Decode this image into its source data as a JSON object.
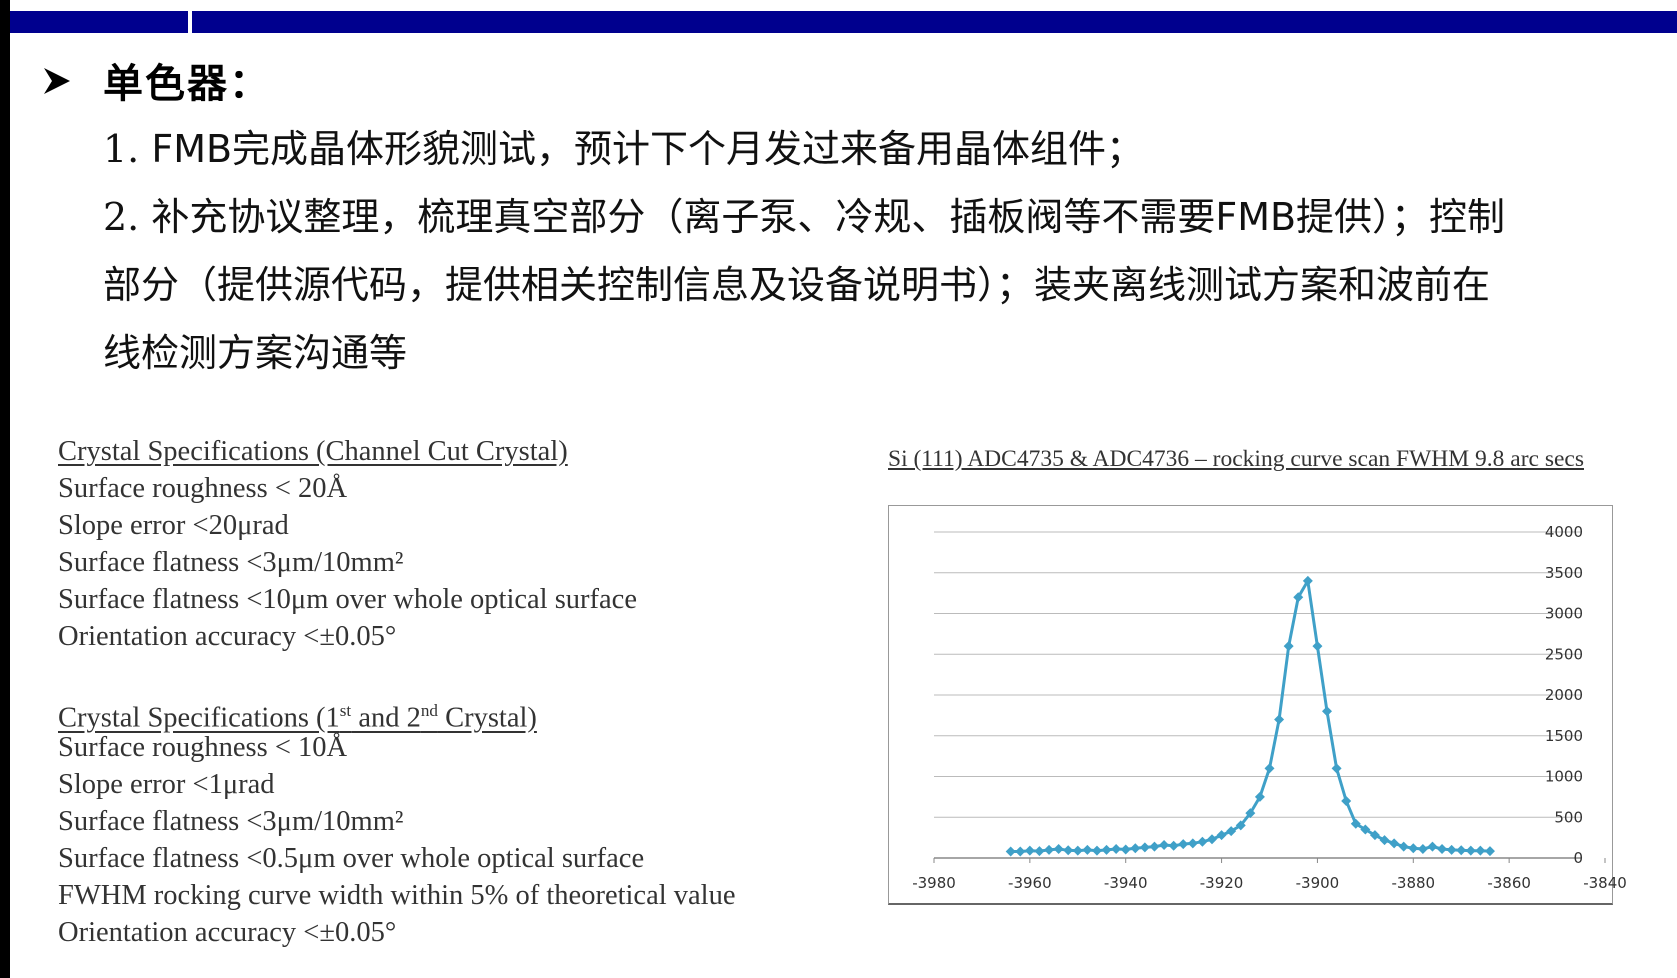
{
  "slide": {
    "heading": "单色器：",
    "items": [
      {
        "num": "1.",
        "text": " FMB完成晶体形貌测试，预计下个月发过来备用晶体组件；"
      },
      {
        "num": "2.",
        "text": " 补充协议整理，梳理真空部分（离子泵、冷规、插板阀等不需要FMB提供）；控制"
      },
      {
        "num": "",
        "text": "部分（提供源代码，提供相关控制信息及设备说明书）；装夹离线测试方案和波前在"
      },
      {
        "num": "",
        "text": "线检测方案沟通等"
      }
    ],
    "colors": {
      "top_bar": "#00008e",
      "curve": "#3fa0c8"
    }
  },
  "specs": {
    "group1": {
      "title": "Crystal Specifications (Channel Cut Crystal)",
      "lines": [
        "Surface roughness < 20Å",
        "Slope error <20μrad",
        "Surface flatness  <3μm/10mm²",
        "Surface flatness  <10μm over whole optical surface",
        "Orientation accuracy <±0.05°"
      ]
    },
    "group2": {
      "title_pre": "Crystal Specifications (1",
      "title_sup1": "st",
      "title_mid": " and 2",
      "title_sup2": "nd",
      "title_post": " Crystal)",
      "lines": [
        "Surface roughness < 10Å",
        "Slope error <1μrad",
        "Surface flatness  <3μm/10mm²",
        "Surface flatness  <0.5μm over whole optical surface",
        "FWHM rocking curve width within 5% of theoretical value",
        "Orientation accuracy <±0.05°"
      ]
    }
  },
  "chart_data": {
    "type": "line",
    "title": "Si (111) ADC4735 & ADC4736 – rocking curve scan FWHM 9.8 arc secs",
    "xlabel": "",
    "ylabel": "",
    "xlim": [
      -3980,
      -3840
    ],
    "ylim": [
      0,
      4000
    ],
    "x_ticks": [
      -3980,
      -3960,
      -3940,
      -3920,
      -3900,
      -3880,
      -3860,
      -3840
    ],
    "y_ticks": [
      0,
      500,
      1000,
      1500,
      2000,
      2500,
      3000,
      3500,
      4000
    ],
    "grid": true,
    "legend": "none",
    "series": [
      {
        "x": [
          -3964,
          -3962,
          -3960,
          -3958,
          -3956,
          -3954,
          -3952,
          -3950,
          -3948,
          -3946,
          -3944,
          -3942,
          -3940,
          -3938,
          -3936,
          -3934,
          -3932,
          -3930,
          -3928,
          -3926,
          -3924,
          -3922,
          -3920,
          -3918,
          -3916,
          -3914,
          -3912,
          -3910,
          -3908,
          -3906,
          -3904,
          -3902,
          -3900,
          -3898,
          -3896,
          -3894,
          -3892,
          -3890,
          -3888,
          -3886,
          -3884,
          -3882,
          -3880,
          -3878,
          -3876,
          -3874,
          -3872,
          -3870,
          -3868,
          -3866,
          -3864
        ],
        "y": [
          80,
          80,
          90,
          85,
          100,
          110,
          95,
          90,
          100,
          90,
          100,
          110,
          105,
          120,
          130,
          140,
          160,
          150,
          170,
          180,
          200,
          230,
          280,
          330,
          400,
          550,
          750,
          1100,
          1700,
          2600,
          3200,
          3400,
          2600,
          1800,
          1100,
          700,
          420,
          350,
          280,
          220,
          180,
          140,
          120,
          110,
          140,
          110,
          100,
          95,
          90,
          90,
          85
        ]
      }
    ]
  }
}
